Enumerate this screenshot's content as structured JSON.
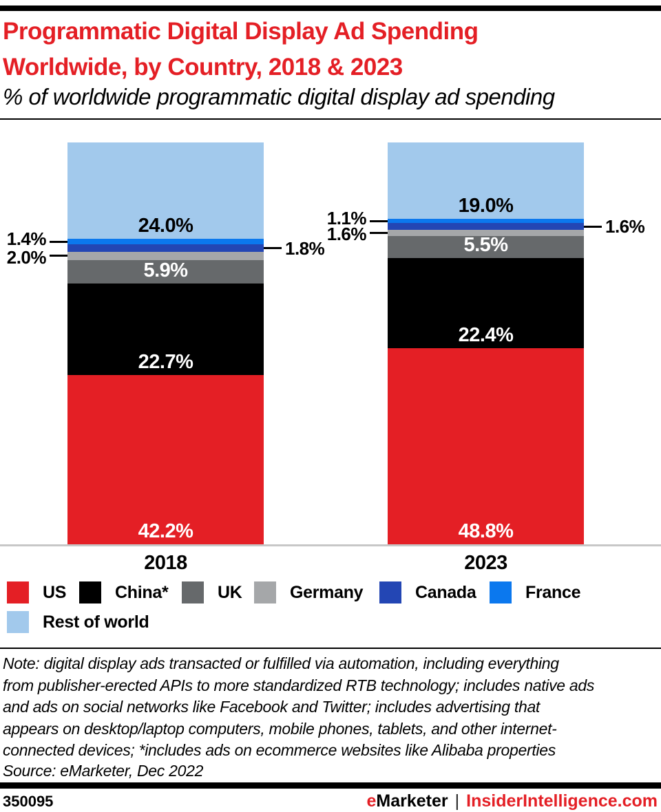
{
  "colors": {
    "brand_red": "#e41f25",
    "baseline_gray": "#c7c7c7",
    "separator_black": "#000000"
  },
  "chart_data": {
    "type": "bar",
    "stacked": true,
    "title": "Programmatic Digital Display Ad Spending\nWorldwide, by Country, 2018 & 2023",
    "subtitle": "% of worldwide programmatic digital display ad spending",
    "categories": [
      "2018",
      "2023"
    ],
    "series": [
      {
        "name": "US",
        "color": "#e41f25",
        "values": [
          42.2,
          48.8
        ],
        "label_style": "inside-white"
      },
      {
        "name": "China*",
        "color": "#000000",
        "values": [
          22.7,
          22.4
        ],
        "label_style": "inside-white"
      },
      {
        "name": "UK",
        "color": "#66696b",
        "values": [
          5.9,
          5.5
        ],
        "label_style": "inside-white"
      },
      {
        "name": "Germany",
        "color": "#a5a7a9",
        "values": [
          2.0,
          1.6
        ],
        "label_style": "callout-left"
      },
      {
        "name": "Canada",
        "color": "#2346b4",
        "values": [
          1.8,
          1.6
        ],
        "label_style": "callout-right"
      },
      {
        "name": "France",
        "color": "#0b78ee",
        "values": [
          1.4,
          1.1
        ],
        "label_style": "callout-left"
      },
      {
        "name": "Rest of world",
        "color": "#a2c9ec",
        "values": [
          24.0,
          19.0
        ],
        "label_style": "inside-black"
      }
    ],
    "value_suffix": "%",
    "xlabel": "",
    "ylabel": "",
    "ylim": [
      0,
      100
    ],
    "grid": false,
    "legend_position": "bottom"
  },
  "note": "Note: digital display ads transacted or fulfilled via automation, including everything\nfrom publisher-erected APIs to more standardized RTB technology; includes native ads\nand ads on social networks like Facebook and Twitter; includes advertising that\nappears on desktop/laptop computers, mobile phones, tablets, and other internet-\nconnected devices; *includes ads on ecommerce websites like Alibaba properties",
  "source": "Source: eMarketer, Dec 2022",
  "footer": {
    "chart_id": "350095",
    "brand_e": "e",
    "brand_rest": "Marketer",
    "separator": "|",
    "brand_site": "InsiderIntelligence.com"
  }
}
